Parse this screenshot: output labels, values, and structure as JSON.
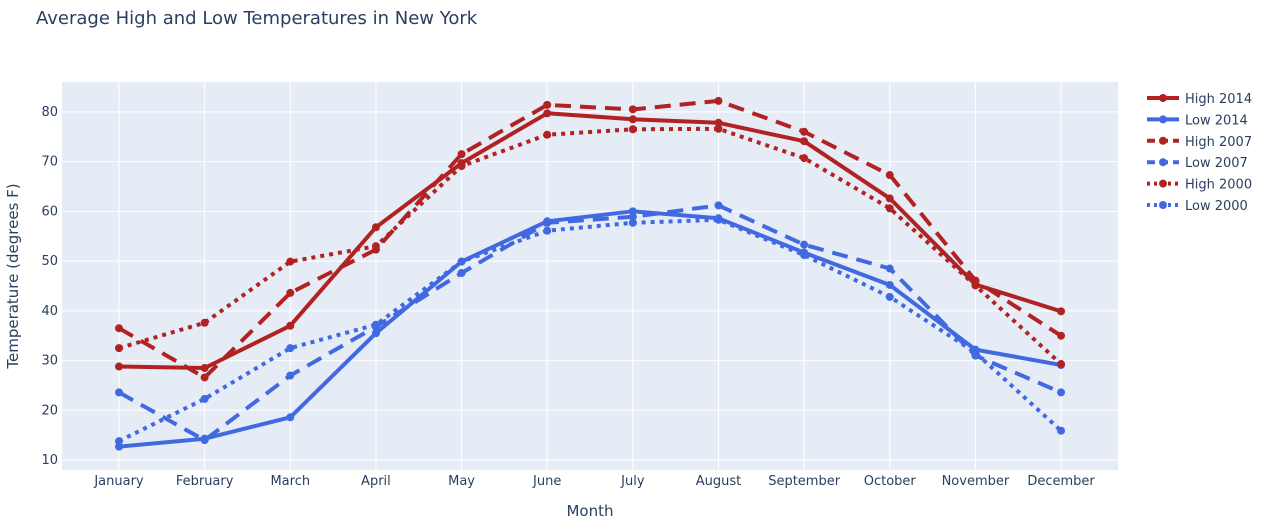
{
  "chart_data": {
    "type": "line",
    "title": "Average High and Low Temperatures in New York",
    "xlabel": "Month",
    "ylabel": "Temperature (degrees F)",
    "categories": [
      "January",
      "February",
      "March",
      "April",
      "May",
      "June",
      "July",
      "August",
      "September",
      "October",
      "November",
      "December"
    ],
    "ylim": [
      8,
      86
    ],
    "yticks": [
      10,
      20,
      30,
      40,
      50,
      60,
      70,
      80
    ],
    "grid": true,
    "legend_position": "right",
    "plot_background": "#e5ecf6",
    "series": [
      {
        "name": "High 2014",
        "color": "#b22222",
        "dash": "solid",
        "values": [
          28.8,
          28.5,
          37.0,
          56.8,
          69.7,
          79.7,
          78.5,
          77.8,
          74.1,
          62.6,
          45.3,
          39.9
        ]
      },
      {
        "name": "Low 2014",
        "color": "#4169e1",
        "dash": "solid",
        "values": [
          12.7,
          14.3,
          18.6,
          35.5,
          49.9,
          58.0,
          60.0,
          58.6,
          51.7,
          45.2,
          32.2,
          29.1
        ]
      },
      {
        "name": "High 2007",
        "color": "#b22222",
        "dash": "dash",
        "values": [
          36.5,
          26.6,
          43.6,
          52.3,
          71.5,
          81.4,
          80.5,
          82.2,
          76.0,
          67.3,
          46.1,
          35.0
        ]
      },
      {
        "name": "Low 2007",
        "color": "#4169e1",
        "dash": "dash",
        "values": [
          23.6,
          14.0,
          27.0,
          36.8,
          47.6,
          57.7,
          58.9,
          61.2,
          53.3,
          48.5,
          31.0,
          23.6
        ]
      },
      {
        "name": "High 2000",
        "color": "#b22222",
        "dash": "dot",
        "values": [
          32.5,
          37.6,
          49.9,
          53.0,
          69.1,
          75.4,
          76.5,
          76.6,
          70.7,
          60.6,
          45.1,
          29.3
        ]
      },
      {
        "name": "Low 2000",
        "color": "#4169e1",
        "dash": "dot",
        "values": [
          13.8,
          22.3,
          32.5,
          37.2,
          49.9,
          56.1,
          57.7,
          58.3,
          51.2,
          42.8,
          31.6,
          15.9
        ]
      }
    ]
  }
}
